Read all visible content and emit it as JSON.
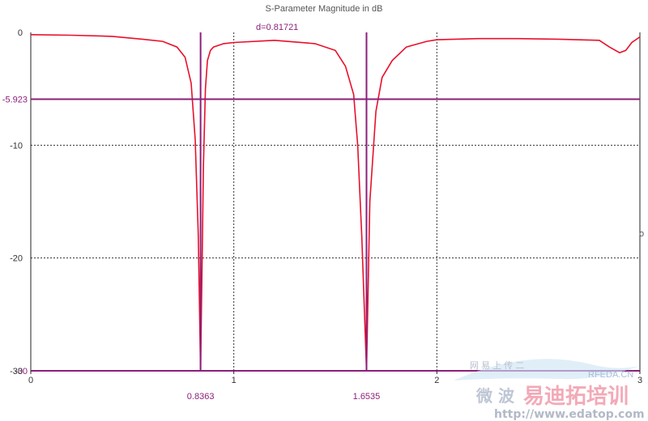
{
  "chart_data": {
    "type": "line",
    "title": "S-Parameter Magnitude in dB",
    "xlim": [
      0,
      3
    ],
    "ylim": [
      -30,
      0
    ],
    "x_ticks": [
      "0",
      "1",
      "2",
      "3"
    ],
    "y_ticks": [
      "0",
      "-10",
      "-20",
      "-30"
    ],
    "grid": true,
    "grid_x": [
      1,
      2
    ],
    "grid_y": [
      -10,
      -20
    ],
    "series": [
      {
        "color": "#e8102a",
        "x": [
          0,
          0.2,
          0.4,
          0.55,
          0.65,
          0.72,
          0.76,
          0.79,
          0.81,
          0.825,
          0.8363,
          0.845,
          0.85,
          0.86,
          0.87,
          0.885,
          0.9,
          0.95,
          1.0,
          1.2,
          1.4,
          1.5,
          1.55,
          1.59,
          1.61,
          1.63,
          1.6535,
          1.67,
          1.7,
          1.73,
          1.78,
          1.85,
          1.95,
          2.0,
          2.2,
          2.4,
          2.6,
          2.8,
          2.85,
          2.9,
          2.93,
          2.96,
          3.0
        ],
        "y": [
          -0.2,
          -0.25,
          -0.35,
          -0.6,
          -0.8,
          -1.3,
          -2.2,
          -4.5,
          -9.5,
          -18,
          -30,
          -19,
          -12,
          -5,
          -2.5,
          -1.6,
          -1.3,
          -1.0,
          -0.9,
          -0.7,
          -1.0,
          -1.6,
          -3.0,
          -5.5,
          -10,
          -18,
          -30,
          -15,
          -7,
          -4,
          -2.5,
          -1.3,
          -0.8,
          -0.65,
          -0.55,
          -0.55,
          -0.6,
          -0.7,
          -1.3,
          -1.8,
          -1.6,
          -0.9,
          -0.4
        ]
      }
    ],
    "markers": [
      {
        "axis": "x",
        "value": 0.8363,
        "label": "0.8363",
        "color": "#8b1f7a"
      },
      {
        "axis": "x",
        "value": 1.6535,
        "label": "1.6535",
        "color": "#8b1f7a"
      },
      {
        "axis": "y",
        "value": -5.923,
        "label": "-5.923",
        "color": "#8b1f7a"
      },
      {
        "axis": "y",
        "value": -30,
        "label": "-30",
        "color": "#8b1f7a"
      }
    ],
    "delta_label": "d=0.81721",
    "right_edge_label": "o"
  },
  "watermark": {
    "line1": "网 易 上 传 二",
    "site": "RFEDA.CN",
    "brand_prefix": "微 波",
    "brand": "易迪拓培训",
    "url": "http://www.edatop.com"
  }
}
